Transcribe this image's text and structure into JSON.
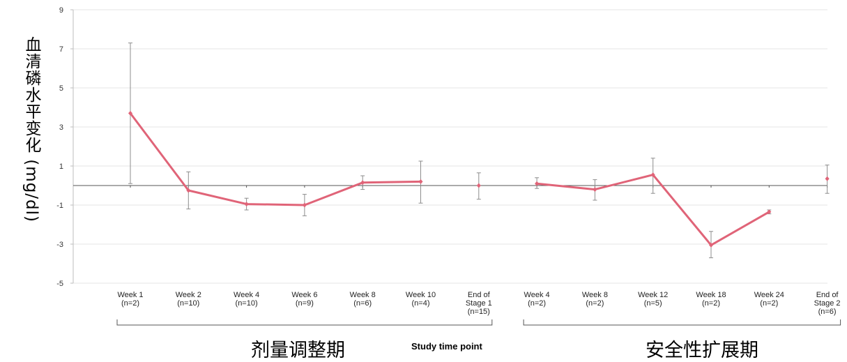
{
  "chart_data": {
    "type": "line",
    "title": "",
    "xlabel": "Study time point",
    "ylabel": "血清磷水平变化 (mg/dl)",
    "ylim": [
      -5,
      9
    ],
    "yticks": [
      "9",
      "7",
      "5",
      "3",
      "1",
      "-1",
      "-3",
      "-5"
    ],
    "grid": true,
    "categories": [
      {
        "line1": "Week 1",
        "line2": "(n=2)"
      },
      {
        "line1": "Week 2",
        "line2": "(n=10)"
      },
      {
        "line1": "Week 4",
        "line2": "(n=10)"
      },
      {
        "line1": "Week 6",
        "line2": "(n=9)"
      },
      {
        "line1": "Week 8",
        "line2": "(n=6)"
      },
      {
        "line1": "Week 10",
        "line2": "(n=4)"
      },
      {
        "line1": "End of",
        "line2": "Stage 1",
        "line3": "(n=15)"
      },
      {
        "line1": "Week 4",
        "line2": "(n=2)"
      },
      {
        "line1": "Week 8",
        "line2": "(n=2)"
      },
      {
        "line1": "Week 12",
        "line2": "(n=5)"
      },
      {
        "line1": "Week 18",
        "line2": "(n=2)"
      },
      {
        "line1": "Week 24",
        "line2": "(n=2)"
      },
      {
        "line1": "End of",
        "line2": "Stage 2",
        "line3": "(n=6)"
      }
    ],
    "series": [
      {
        "values": [
          3.7,
          -0.25,
          -0.95,
          -1.0,
          0.15,
          0.2,
          0.0,
          0.1,
          -0.2,
          0.55,
          -3.05,
          -1.35,
          0.35
        ],
        "error_low": [
          0.1,
          -1.2,
          -1.25,
          -1.55,
          -0.2,
          -0.9,
          -0.7,
          -0.15,
          -0.75,
          -0.4,
          -3.7,
          -1.45,
          -0.4
        ],
        "error_high": [
          7.3,
          0.7,
          -0.65,
          -0.45,
          0.5,
          1.25,
          0.65,
          0.4,
          0.3,
          1.4,
          -2.35,
          -1.25,
          1.05
        ]
      }
    ],
    "groups": [
      {
        "label": "剂量调整期",
        "from": 0,
        "to": 6
      },
      {
        "label": "安全性扩展期",
        "from": 7,
        "to": 12
      }
    ],
    "connected_segments": [
      [
        0,
        5
      ],
      [
        7,
        11
      ]
    ],
    "colors": {
      "line": "#e06478",
      "marker": "#e06478",
      "error_bar": "#8c8c8c",
      "grid": "#e6e6e6",
      "zero_line": "#555555"
    }
  }
}
